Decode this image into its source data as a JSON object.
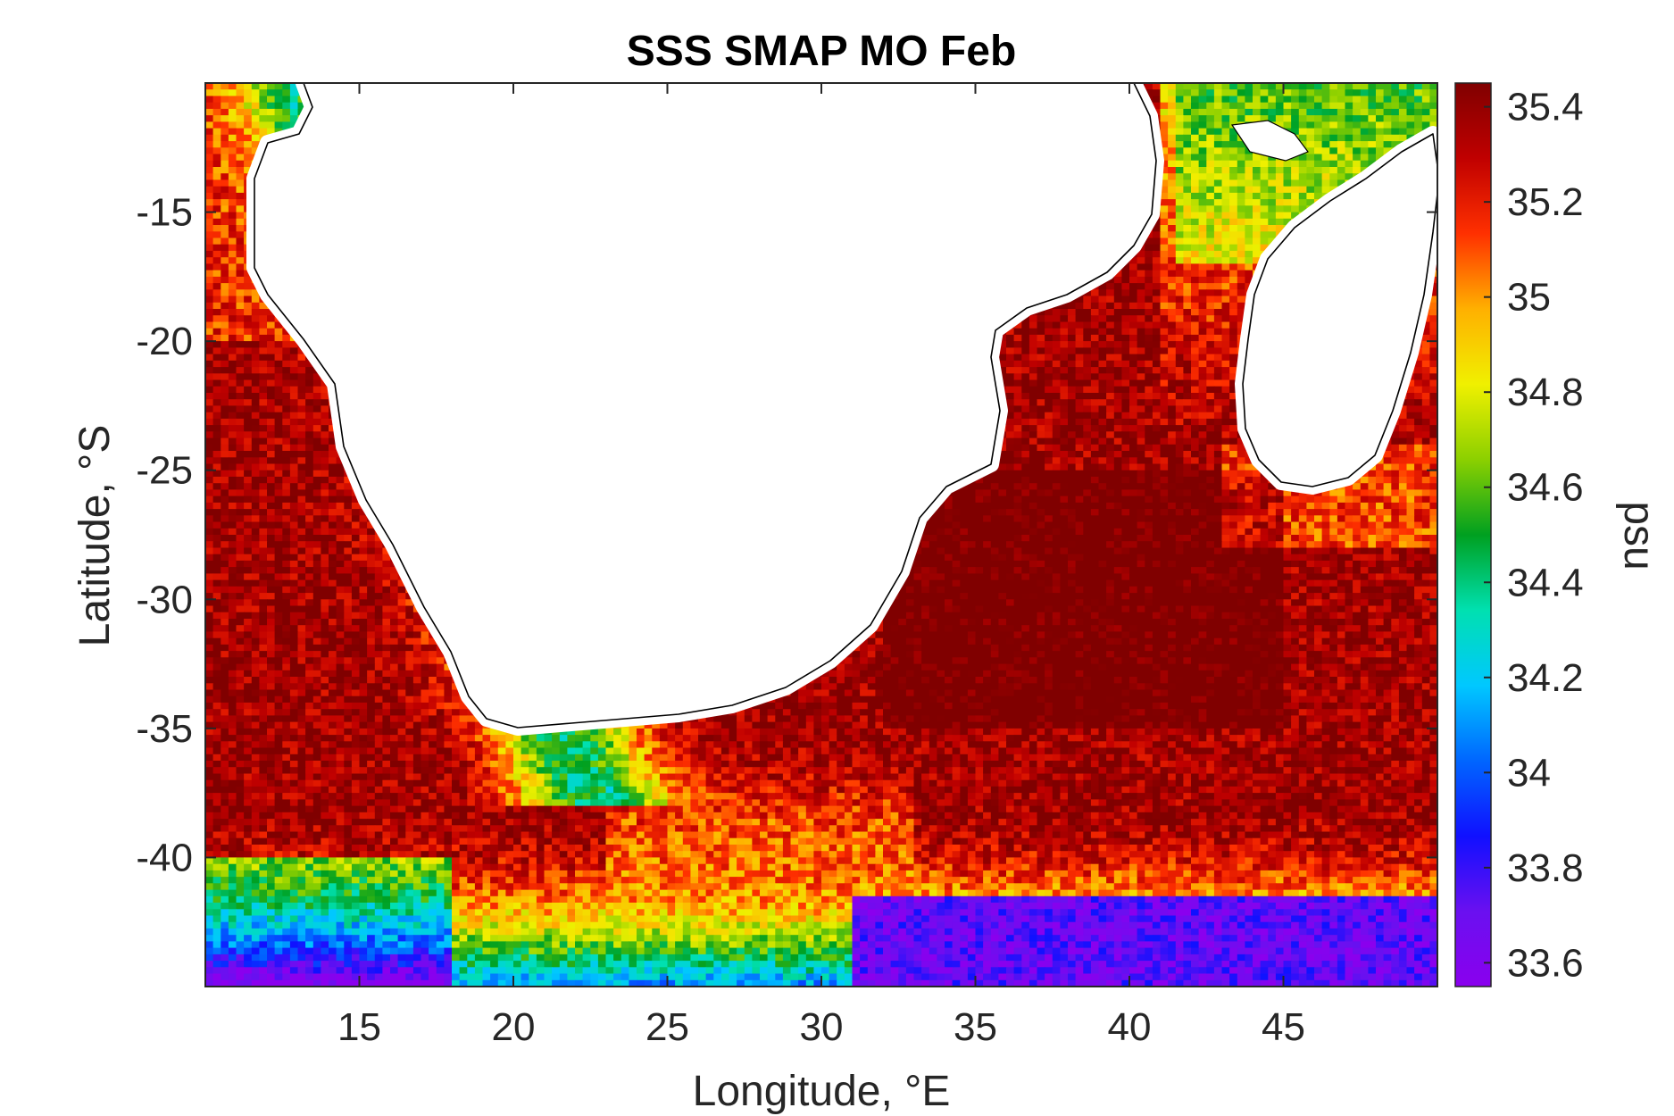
{
  "chart_data": {
    "type": "heatmap",
    "title": "SSS SMAP MO Feb",
    "xlabel": "Longitude, °E",
    "ylabel": "Latitude, °S",
    "xlim": [
      10,
      50
    ],
    "ylim": [
      -45,
      -10
    ],
    "xticks": [
      "15",
      "20",
      "25",
      "30",
      "35",
      "40",
      "45"
    ],
    "xtick_values": [
      15,
      20,
      25,
      30,
      35,
      40,
      45
    ],
    "yticks": [
      "-15",
      "-20",
      "-25",
      "-30",
      "-35",
      "-40"
    ],
    "ytick_values": [
      -15,
      -20,
      -25,
      -30,
      -35,
      -40
    ],
    "colorbar": {
      "label": "psu",
      "range": [
        33.55,
        35.45
      ],
      "ticks": [
        "35.4",
        "35.2",
        "35",
        "34.8",
        "34.6",
        "34.4",
        "34.2",
        "34",
        "33.8",
        "33.6"
      ],
      "tick_values": [
        35.4,
        35.2,
        35.0,
        34.8,
        34.6,
        34.4,
        34.2,
        34.0,
        33.8,
        33.6
      ],
      "colors": [
        "#8a00ee",
        "#6a10f0",
        "#1010ff",
        "#0066ff",
        "#00c8ff",
        "#00e0b0",
        "#00a020",
        "#8cd000",
        "#f0f000",
        "#ffb000",
        "#ff3000",
        "#c00000",
        "#800000"
      ]
    },
    "land_color": "#ffffff",
    "grid": false
  }
}
